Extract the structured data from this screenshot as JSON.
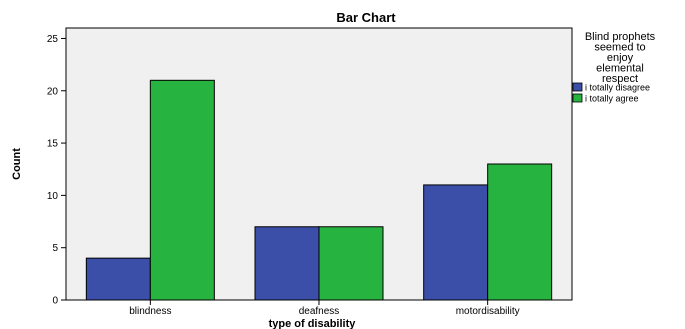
{
  "chart_data": {
    "type": "bar",
    "title": "Bar Chart",
    "xlabel": "type of disability",
    "ylabel": "Count",
    "categories": [
      "blindness",
      "deafness",
      "motordisability"
    ],
    "series": [
      {
        "name": "i totally disagree",
        "values": [
          4,
          7,
          11
        ],
        "color": "#3b4ea8"
      },
      {
        "name": "i totally agree",
        "values": [
          21,
          7,
          13
        ],
        "color": "#27b340"
      }
    ],
    "ylim": [
      0,
      26
    ],
    "yticks": [
      0,
      5,
      10,
      15,
      20,
      25
    ],
    "legend": {
      "title_lines": [
        "Blind prophets",
        "seemed to",
        "enjoy",
        "elemental",
        "respect"
      ],
      "placement": "right"
    },
    "grid": false,
    "plot_background": "#f0f0f0"
  }
}
